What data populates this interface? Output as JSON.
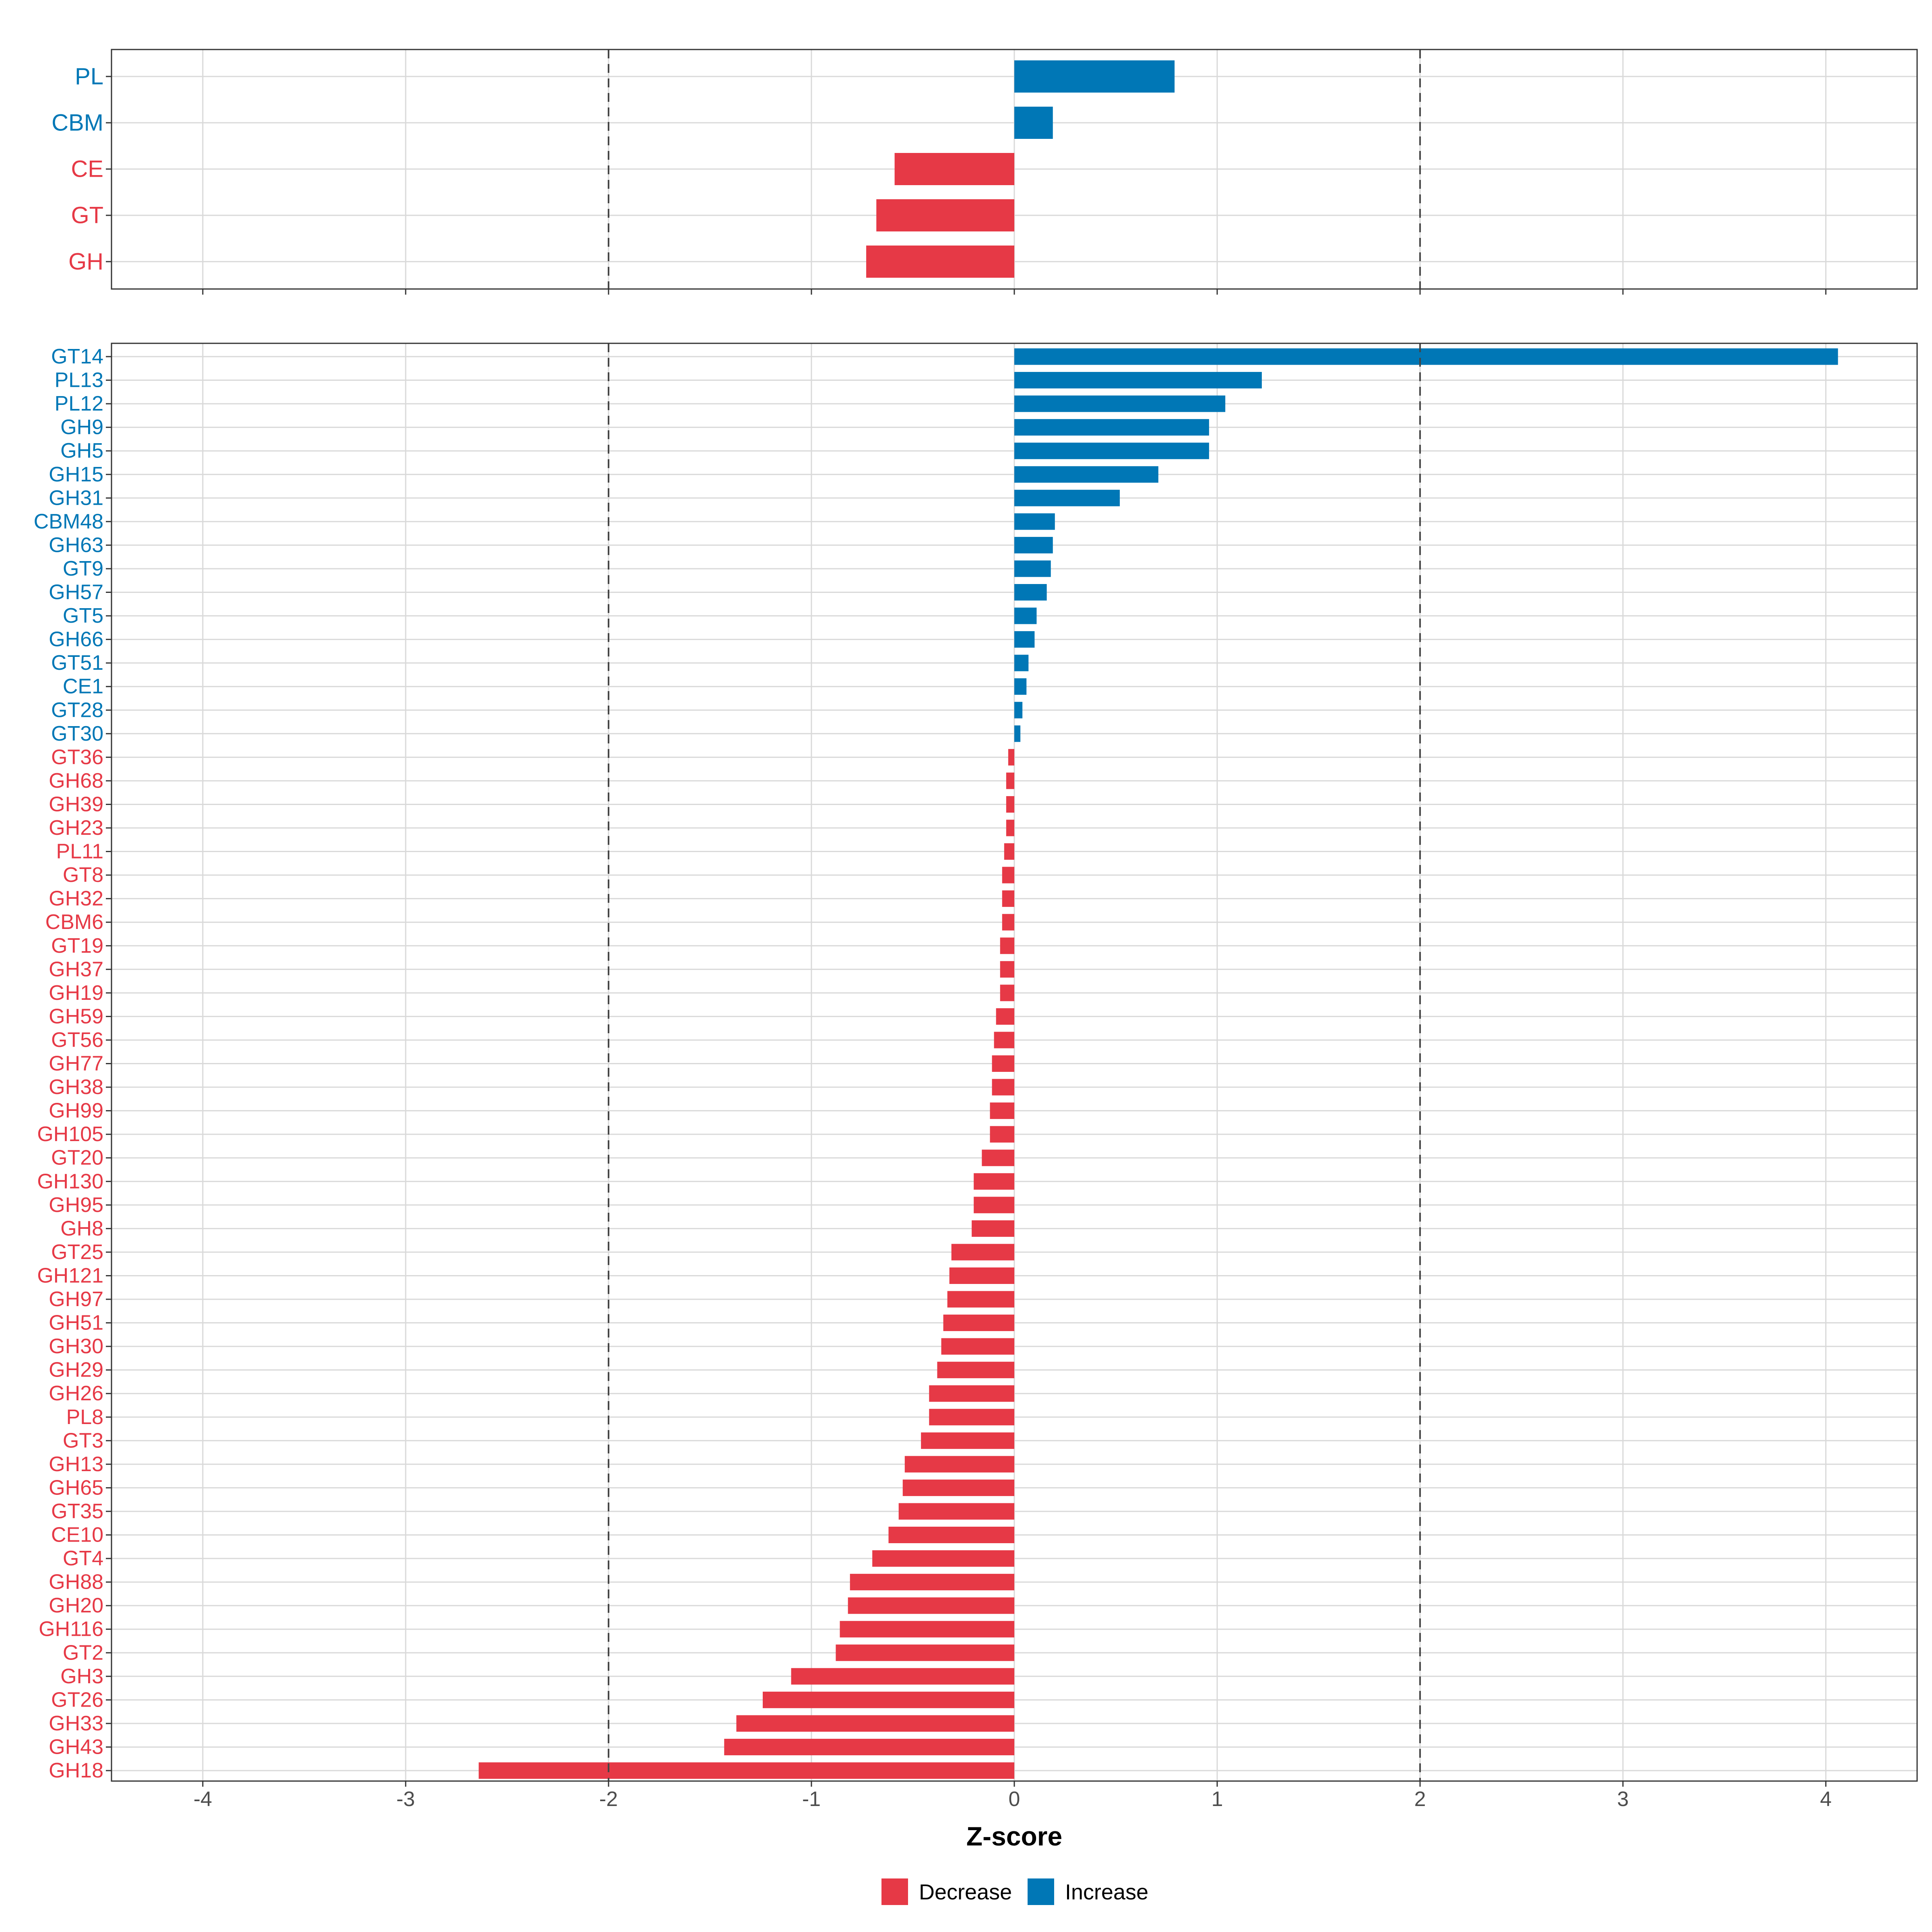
{
  "chart_data": [
    {
      "type": "bar",
      "orientation": "horizontal",
      "panel": "top",
      "categories": [
        "PL",
        "CBM",
        "CE",
        "GT",
        "GH"
      ],
      "values": [
        0.79,
        0.19,
        -0.59,
        -0.68,
        -0.73
      ],
      "xlim": [
        -4.45,
        4.45
      ],
      "reference_lines": [
        -2,
        2
      ],
      "grid": true
    },
    {
      "type": "bar",
      "orientation": "horizontal",
      "panel": "bottom",
      "categories": [
        "GT14",
        "PL13",
        "PL12",
        "GH9",
        "GH5",
        "GH15",
        "GH31",
        "CBM48",
        "GH63",
        "GT9",
        "GH57",
        "GT5",
        "GH66",
        "GT51",
        "CE1",
        "GT28",
        "GT30",
        "GT36",
        "GH68",
        "GH39",
        "GH23",
        "PL11",
        "GT8",
        "GH32",
        "CBM6",
        "GT19",
        "GH37",
        "GH19",
        "GH59",
        "GT56",
        "GH77",
        "GH38",
        "GH99",
        "GH105",
        "GT20",
        "GH130",
        "GH95",
        "GH8",
        "GT25",
        "GH121",
        "GH97",
        "GH51",
        "GH30",
        "GH29",
        "GH26",
        "PL8",
        "GT3",
        "GH13",
        "GH65",
        "GT35",
        "CE10",
        "GT4",
        "GH88",
        "GH20",
        "GH116",
        "GT2",
        "GH3",
        "GT26",
        "GH33",
        "GH43",
        "GH18"
      ],
      "values": [
        4.06,
        1.22,
        1.04,
        0.96,
        0.96,
        0.71,
        0.52,
        0.2,
        0.19,
        0.18,
        0.16,
        0.11,
        0.1,
        0.07,
        0.06,
        0.04,
        0.03,
        -0.03,
        -0.04,
        -0.04,
        -0.04,
        -0.05,
        -0.06,
        -0.06,
        -0.06,
        -0.07,
        -0.07,
        -0.07,
        -0.09,
        -0.1,
        -0.11,
        -0.11,
        -0.12,
        -0.12,
        -0.16,
        -0.2,
        -0.2,
        -0.21,
        -0.31,
        -0.32,
        -0.33,
        -0.35,
        -0.36,
        -0.38,
        -0.42,
        -0.42,
        -0.46,
        -0.54,
        -0.55,
        -0.57,
        -0.62,
        -0.7,
        -0.81,
        -0.82,
        -0.86,
        -0.88,
        -1.1,
        -1.24,
        -1.37,
        -1.43,
        -2.64
      ],
      "xlim": [
        -4.45,
        4.45
      ],
      "xticks": [
        "-4",
        "-3",
        "-2",
        "-1",
        "0",
        "1",
        "2",
        "3",
        "4"
      ],
      "xlabel": "Z-score",
      "reference_lines": [
        -2,
        2
      ],
      "grid": true
    }
  ],
  "legend": {
    "placement": "bottom",
    "items": [
      {
        "label": "Decrease",
        "color": "#e63946"
      },
      {
        "label": "Increase",
        "color": "#0077b6"
      }
    ]
  },
  "colors": {
    "increase": "#0077b6",
    "decrease": "#e63946",
    "grid": "#d9d9d9",
    "panel_border": "#333333",
    "reference_line": "#444444"
  }
}
